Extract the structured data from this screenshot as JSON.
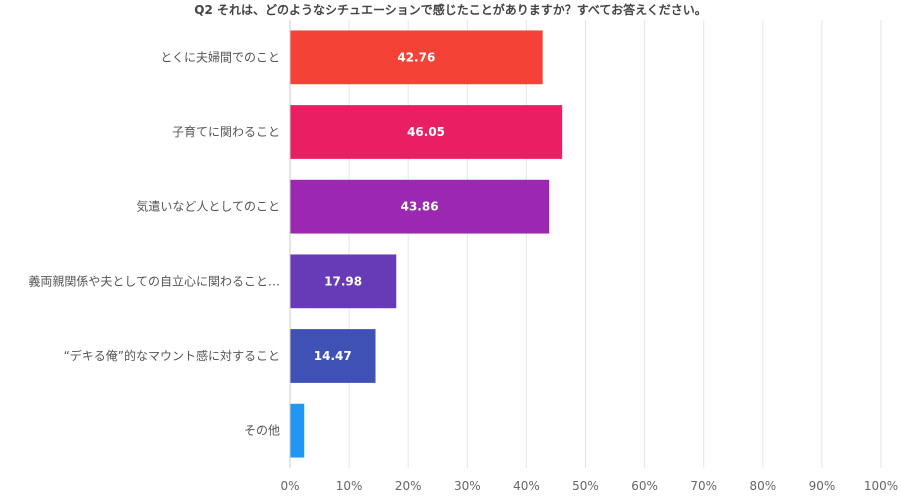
{
  "chart_data": {
    "type": "bar",
    "orientation": "horizontal",
    "title": "Q2 それは、どのようなシチュエーションで感じたことがありますか？すべてお答えください。",
    "categories": [
      "とくに夫婦間でのこと",
      "子育てに関わること",
      "気遣いなど人としてのこと",
      "義両親関係や夫としての自立心に関わること…",
      "“デキる俺”的なマウント感に対すること",
      "その他"
    ],
    "values": [
      42.76,
      46.05,
      43.86,
      17.98,
      14.47,
      2.41
    ],
    "value_labels": [
      "42.76",
      "46.05",
      "43.86",
      "17.98",
      "14.47",
      ""
    ],
    "colors": [
      "#f44336",
      "#e91e63",
      "#9c27b0",
      "#673ab7",
      "#3f51b5",
      "#2196f3"
    ],
    "xlim": [
      0,
      100
    ],
    "xticks": [
      "0%",
      "10%",
      "20%",
      "30%",
      "40%",
      "50%",
      "60%",
      "70%",
      "80%",
      "90%",
      "100%"
    ],
    "grid": true,
    "legend": "none"
  }
}
